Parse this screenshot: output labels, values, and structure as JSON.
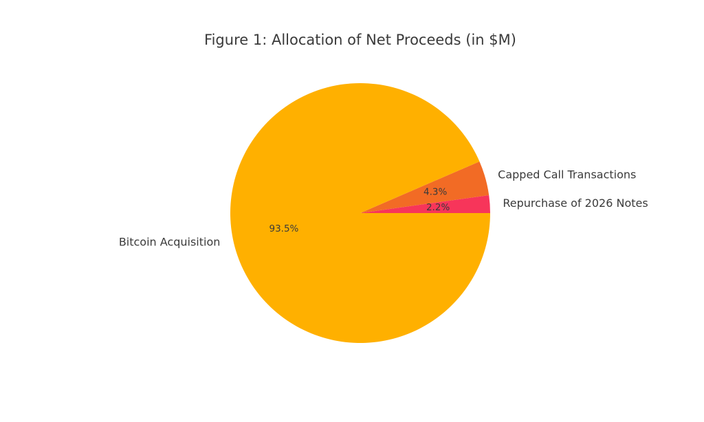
{
  "chart_data": {
    "type": "pie",
    "title": "Figure 1: Allocation of Net Proceeds (in $M)",
    "start_angle_deg": 0,
    "direction": "counterclockwise",
    "slices": [
      {
        "label": "Repurchase of 2026 Notes",
        "percent": 2.2,
        "percent_label": "2.2%",
        "color": "#f7355a"
      },
      {
        "label": "Capped Call Transactions",
        "percent": 4.3,
        "percent_label": "4.3%",
        "color": "#f26b25"
      },
      {
        "label": "Bitcoin Acquisition",
        "percent": 93.5,
        "percent_label": "93.5%",
        "color": "#ffb000"
      }
    ]
  }
}
